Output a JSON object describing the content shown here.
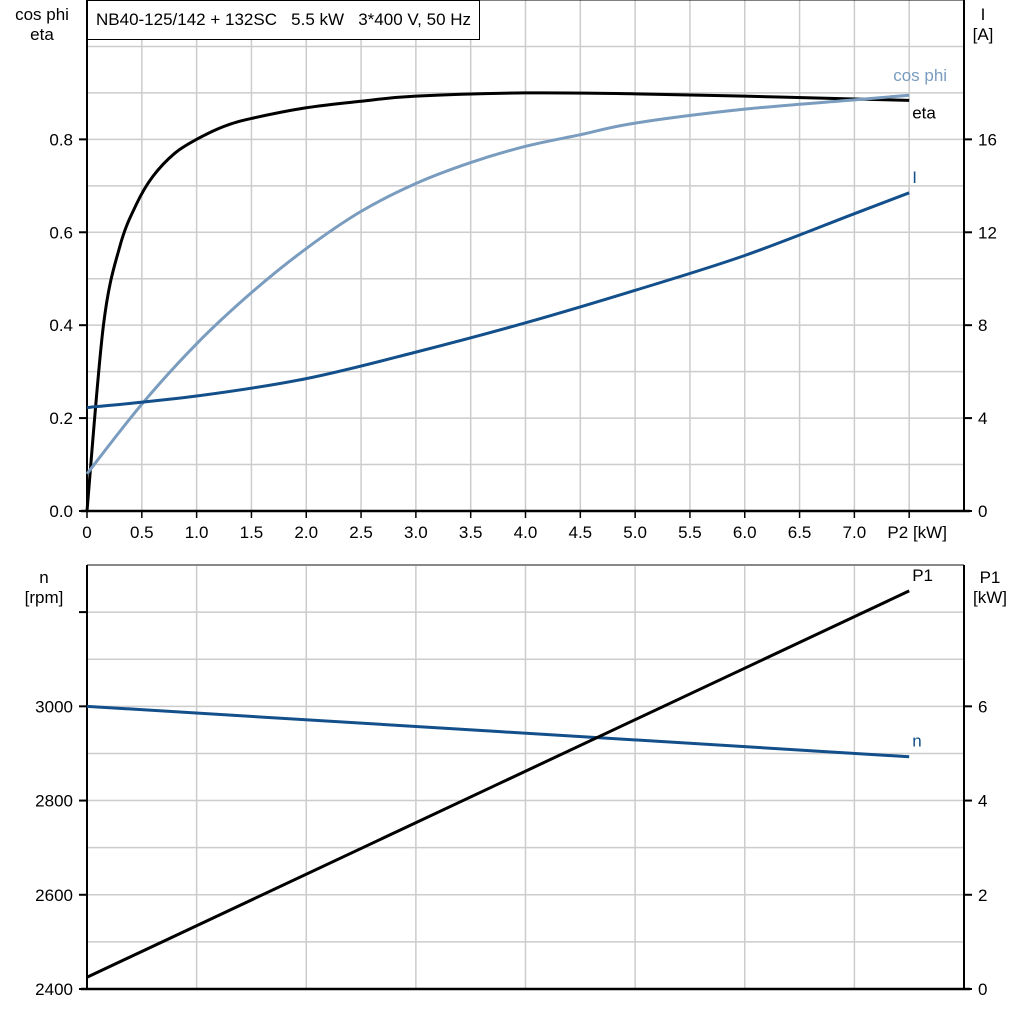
{
  "title": "NB40-125/142 + 132SC   5.5 kW   3*400 V, 50 Hz",
  "colors": {
    "eta": "#000000",
    "cos_phi": "#7a9cbf",
    "I": "#134f8a",
    "n": "#134f8a",
    "P1": "#000000",
    "grid": "#cccccc"
  },
  "chart_data": [
    {
      "type": "line",
      "left_axis_label": [
        "cos phi",
        "eta"
      ],
      "right_axis_label": [
        "I",
        "[A]"
      ],
      "xlabel": "P2 [kW]",
      "xlim": [
        0,
        8
      ],
      "ylim": [
        0,
        1.1
      ],
      "y2lim": [
        0,
        22
      ],
      "grid": true,
      "x_ticks": [
        "0",
        "0.5",
        "1.0",
        "1.5",
        "2.0",
        "2.5",
        "3.0",
        "3.5",
        "4.0",
        "4.5",
        "5.0",
        "5.5",
        "6.0",
        "6.5",
        "7.0"
      ],
      "y_ticks": [
        "0.0",
        "0.2",
        "0.4",
        "0.6",
        "0.8"
      ],
      "y2_ticks": [
        "0",
        "4",
        "8",
        "12",
        "16"
      ],
      "series": [
        {
          "name": "eta",
          "axis": "left",
          "x": [
            0,
            0.15,
            0.3,
            0.45,
            0.6,
            0.8,
            1.0,
            1.25,
            1.5,
            2.0,
            2.5,
            3.0,
            4.0,
            5.0,
            6.0,
            7.0,
            7.5
          ],
          "y": [
            0,
            0.4,
            0.57,
            0.66,
            0.72,
            0.77,
            0.8,
            0.828,
            0.845,
            0.868,
            0.882,
            0.893,
            0.9,
            0.898,
            0.893,
            0.887,
            0.884
          ]
        },
        {
          "name": "cos phi",
          "axis": "left",
          "x": [
            0,
            0.5,
            1.0,
            1.5,
            2.0,
            2.5,
            3.0,
            3.5,
            4.0,
            4.5,
            5.0,
            6.0,
            7.0,
            7.5
          ],
          "y": [
            0.08,
            0.23,
            0.36,
            0.47,
            0.565,
            0.645,
            0.705,
            0.75,
            0.785,
            0.81,
            0.835,
            0.865,
            0.885,
            0.895
          ]
        },
        {
          "name": "I",
          "axis": "right",
          "x": [
            0,
            1,
            2,
            3,
            4,
            5,
            6,
            7,
            7.5
          ],
          "y": [
            4.45,
            4.95,
            5.7,
            6.84,
            8.1,
            9.5,
            11.0,
            12.8,
            13.7
          ]
        }
      ]
    },
    {
      "type": "line",
      "left_axis_label": [
        "n",
        "[rpm]"
      ],
      "right_axis_label": [
        "P1",
        "[kW]"
      ],
      "xlim": [
        0,
        8
      ],
      "ylim": [
        2400,
        3300
      ],
      "y2lim": [
        0,
        9
      ],
      "grid": true,
      "y_ticks": [
        "2400",
        "2600",
        "2800",
        "3000"
      ],
      "y2_ticks": [
        "0",
        "2",
        "4",
        "6"
      ],
      "series": [
        {
          "name": "n",
          "axis": "left",
          "x": [
            0,
            7.5
          ],
          "y": [
            3000,
            2893
          ]
        },
        {
          "name": "P1",
          "axis": "right",
          "x": [
            0,
            7.5
          ],
          "y": [
            0.25,
            8.45
          ]
        }
      ]
    }
  ]
}
